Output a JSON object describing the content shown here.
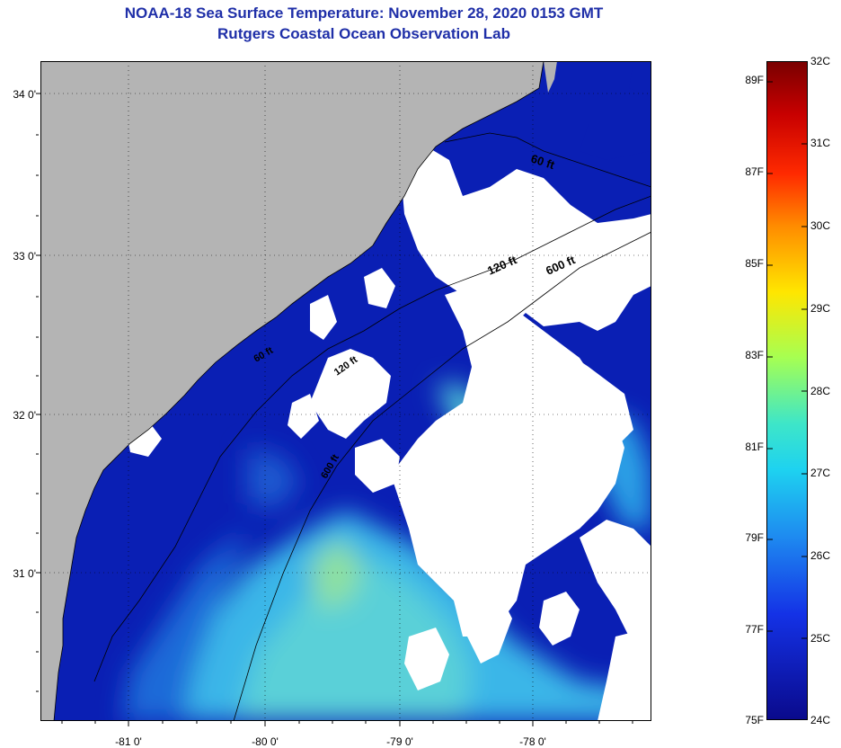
{
  "header": {
    "title": "NOAA-18 Sea Surface Temperature:  November 28, 2020 0153 GMT",
    "subtitle": "Rutgers Coastal Ocean Observation Lab"
  },
  "map": {
    "lat_ticks": [
      {
        "label": "34 0'",
        "value": 34.0
      },
      {
        "label": "33 0'",
        "value": 33.0
      },
      {
        "label": "32 0'",
        "value": 32.0
      },
      {
        "label": "31 0'",
        "value": 31.0
      }
    ],
    "lon_ticks": [
      {
        "label": "-81 0'",
        "value": -81.0
      },
      {
        "label": "-80 0'",
        "value": -80.0
      },
      {
        "label": "-79 0'",
        "value": -79.0
      },
      {
        "label": "-78 0'",
        "value": -78.0
      }
    ],
    "contour_labels": [
      "60 ft",
      "120 ft",
      "600 ft",
      "60 ft",
      "120 ft",
      "600 ft"
    ],
    "colors": {
      "land": "#b4b4b4",
      "cloud": "#ffffff",
      "cold_water": "#0a1fb4",
      "warm_water": "#46c8e6"
    }
  },
  "colorbar": {
    "fahrenheit": [
      "89F",
      "87F",
      "85F",
      "83F",
      "81F",
      "79F",
      "77F",
      "75F"
    ],
    "celsius": [
      "32C",
      "31C",
      "30C",
      "29C",
      "28C",
      "27C",
      "26C",
      "25C",
      "24C"
    ]
  }
}
